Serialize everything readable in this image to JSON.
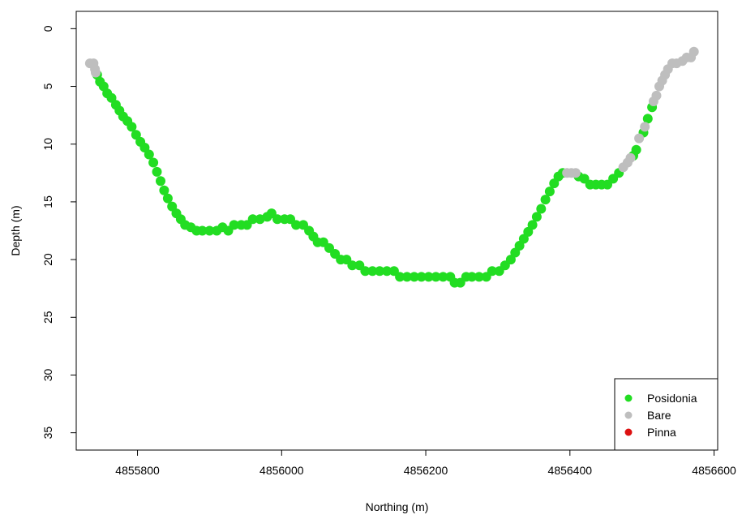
{
  "chart_data": {
    "type": "scatter",
    "title": "",
    "xlabel": "Northing (m)",
    "ylabel": "Depth (m)",
    "xlim": [
      4855715,
      4856605
    ],
    "ylim": [
      -1.5,
      36.5
    ],
    "y_reversed": true,
    "grid": false,
    "legend_position": "bottom-right",
    "x_ticks": [
      4855800,
      4856000,
      4856200,
      4856400,
      4856600
    ],
    "x_tick_labels": [
      "4855800",
      "4856000",
      "4856200",
      "4856400",
      "4856600"
    ],
    "y_ticks": [
      0,
      5,
      10,
      15,
      20,
      25,
      30,
      35
    ],
    "y_tick_labels": [
      "0",
      "5",
      "10",
      "15",
      "20",
      "25",
      "30",
      "35"
    ],
    "series": [
      {
        "name": "Posidonia",
        "color": "#22dd22",
        "points": [
          [
            4855744,
            4.0
          ],
          [
            4855748,
            4.6
          ],
          [
            4855753,
            5.0
          ],
          [
            4855758,
            5.6
          ],
          [
            4855764,
            6.0
          ],
          [
            4855770,
            6.6
          ],
          [
            4855775,
            7.1
          ],
          [
            4855780,
            7.6
          ],
          [
            4855786,
            8.0
          ],
          [
            4855792,
            8.5
          ],
          [
            4855798,
            9.2
          ],
          [
            4855804,
            9.8
          ],
          [
            4855810,
            10.3
          ],
          [
            4855816,
            10.9
          ],
          [
            4855822,
            11.6
          ],
          [
            4855827,
            12.4
          ],
          [
            4855832,
            13.2
          ],
          [
            4855837,
            14.0
          ],
          [
            4855842,
            14.7
          ],
          [
            4855848,
            15.4
          ],
          [
            4855854,
            16.0
          ],
          [
            4855860,
            16.5
          ],
          [
            4855866,
            17.0
          ],
          [
            4855874,
            17.2
          ],
          [
            4855882,
            17.5
          ],
          [
            4855890,
            17.5
          ],
          [
            4855900,
            17.5
          ],
          [
            4855910,
            17.5
          ],
          [
            4855918,
            17.2
          ],
          [
            4855926,
            17.5
          ],
          [
            4855934,
            17.0
          ],
          [
            4855944,
            17.0
          ],
          [
            4855952,
            17.0
          ],
          [
            4855960,
            16.5
          ],
          [
            4855970,
            16.5
          ],
          [
            4855980,
            16.3
          ],
          [
            4855986,
            16.0
          ],
          [
            4855994,
            16.5
          ],
          [
            4856004,
            16.5
          ],
          [
            4856012,
            16.5
          ],
          [
            4856020,
            17.0
          ],
          [
            4856030,
            17.0
          ],
          [
            4856038,
            17.5
          ],
          [
            4856044,
            18.0
          ],
          [
            4856050,
            18.5
          ],
          [
            4856058,
            18.5
          ],
          [
            4856066,
            19.0
          ],
          [
            4856074,
            19.5
          ],
          [
            4856082,
            20.0
          ],
          [
            4856090,
            20.0
          ],
          [
            4856098,
            20.5
          ],
          [
            4856108,
            20.5
          ],
          [
            4856116,
            21.0
          ],
          [
            4856126,
            21.0
          ],
          [
            4856136,
            21.0
          ],
          [
            4856146,
            21.0
          ],
          [
            4856156,
            21.0
          ],
          [
            4856164,
            21.5
          ],
          [
            4856174,
            21.5
          ],
          [
            4856184,
            21.5
          ],
          [
            4856194,
            21.5
          ],
          [
            4856204,
            21.5
          ],
          [
            4856214,
            21.5
          ],
          [
            4856224,
            21.5
          ],
          [
            4856234,
            21.5
          ],
          [
            4856240,
            22.0
          ],
          [
            4856248,
            22.0
          ],
          [
            4856256,
            21.5
          ],
          [
            4856264,
            21.5
          ],
          [
            4856274,
            21.5
          ],
          [
            4856284,
            21.5
          ],
          [
            4856292,
            21.0
          ],
          [
            4856302,
            21.0
          ],
          [
            4856310,
            20.5
          ],
          [
            4856318,
            20.0
          ],
          [
            4856324,
            19.4
          ],
          [
            4856330,
            18.8
          ],
          [
            4856336,
            18.2
          ],
          [
            4856342,
            17.6
          ],
          [
            4856348,
            17.0
          ],
          [
            4856354,
            16.3
          ],
          [
            4856360,
            15.6
          ],
          [
            4856366,
            14.8
          ],
          [
            4856372,
            14.1
          ],
          [
            4856378,
            13.4
          ],
          [
            4856384,
            12.8
          ],
          [
            4856390,
            12.5
          ],
          [
            4856412,
            12.8
          ],
          [
            4856420,
            13.0
          ],
          [
            4856428,
            13.5
          ],
          [
            4856436,
            13.5
          ],
          [
            4856444,
            13.5
          ],
          [
            4856452,
            13.5
          ],
          [
            4856460,
            13.0
          ],
          [
            4856468,
            12.5
          ],
          [
            4856488,
            11.0
          ],
          [
            4856492,
            10.5
          ],
          [
            4856502,
            9.0
          ],
          [
            4856508,
            7.8
          ],
          [
            4856514,
            6.8
          ]
        ]
      },
      {
        "name": "Bare",
        "color": "#bebebe",
        "points": [
          [
            4855734,
            3.0
          ],
          [
            4855739,
            3.0
          ],
          [
            4855741,
            3.5
          ],
          [
            4855742,
            3.8
          ],
          [
            4856396,
            12.5
          ],
          [
            4856402,
            12.5
          ],
          [
            4856408,
            12.5
          ],
          [
            4856474,
            12.0
          ],
          [
            4856480,
            11.6
          ],
          [
            4856484,
            11.2
          ],
          [
            4856496,
            9.5
          ],
          [
            4856504,
            8.5
          ],
          [
            4856516,
            6.3
          ],
          [
            4856520,
            5.8
          ],
          [
            4856524,
            5.0
          ],
          [
            4856528,
            4.5
          ],
          [
            4856532,
            4.0
          ],
          [
            4856536,
            3.5
          ],
          [
            4856542,
            3.0
          ],
          [
            4856548,
            3.0
          ],
          [
            4856556,
            2.8
          ],
          [
            4856562,
            2.5
          ],
          [
            4856568,
            2.5
          ],
          [
            4856572,
            2.0
          ]
        ]
      },
      {
        "name": "Pinna",
        "color": "#dd1111",
        "points": []
      }
    ]
  }
}
